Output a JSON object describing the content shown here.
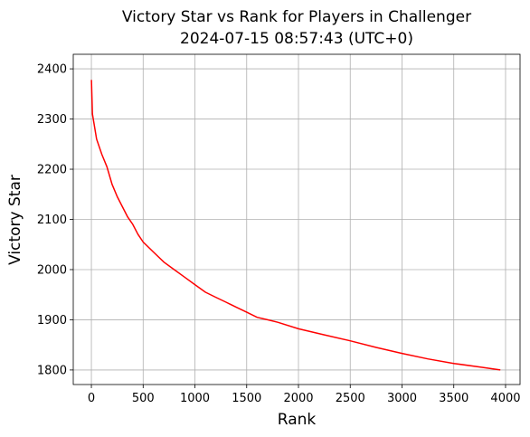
{
  "chart_data": {
    "type": "line",
    "title": "Victory Star vs Rank for Players in Challenger",
    "subtitle": "2024-07-15 08:57:43 (UTC+0)",
    "x_label": "Rank",
    "y_label": "Victory Star",
    "x": [
      1,
      10,
      50,
      100,
      150,
      200,
      250,
      300,
      350,
      400,
      450,
      500,
      600,
      700,
      800,
      900,
      1000,
      1100,
      1200,
      1300,
      1400,
      1500,
      1600,
      1700,
      1800,
      2000,
      2250,
      2500,
      2750,
      3000,
      3250,
      3500,
      3750,
      3950
    ],
    "values": [
      2378,
      2310,
      2260,
      2230,
      2205,
      2170,
      2145,
      2125,
      2105,
      2090,
      2070,
      2055,
      2035,
      2015,
      2000,
      1985,
      1970,
      1955,
      1945,
      1935,
      1925,
      1915,
      1905,
      1900,
      1895,
      1882,
      1870,
      1858,
      1845,
      1833,
      1822,
      1813,
      1806,
      1800
    ],
    "color": "#ff0000",
    "xlim": [
      -175,
      4140
    ],
    "ylim": [
      1771,
      2429
    ],
    "xticks": [
      0,
      500,
      1000,
      1500,
      2000,
      2500,
      3000,
      3500,
      4000
    ],
    "yticks": [
      1800,
      1900,
      2000,
      2100,
      2200,
      2300,
      2400
    ],
    "grid": true
  }
}
